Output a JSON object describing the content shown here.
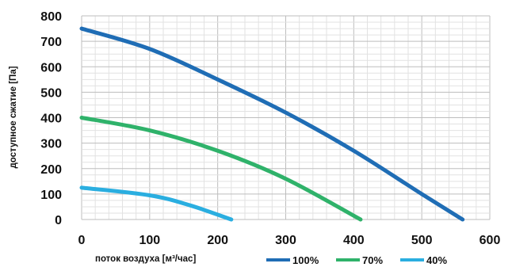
{
  "chart_data": {
    "type": "line",
    "xlabel": "поток воздуха [м³/час]",
    "ylabel": "доступное сжатие [Па]",
    "xlim": [
      0,
      600
    ],
    "ylim": [
      0,
      800
    ],
    "x_ticks": [
      "0",
      "100",
      "200",
      "300",
      "400",
      "500",
      "600"
    ],
    "y_ticks": [
      "0",
      "100",
      "200",
      "300",
      "400",
      "500",
      "600",
      "700",
      "800"
    ],
    "grid": true,
    "legend_position": "bottom-right",
    "series": [
      {
        "name": "100%",
        "color": "#1f6db5",
        "x": [
          0,
          100,
          200,
          300,
          400,
          500,
          560
        ],
        "y": [
          750,
          670,
          550,
          420,
          270,
          100,
          0
        ]
      },
      {
        "name": "70%",
        "color": "#2fb26a",
        "x": [
          0,
          100,
          200,
          300,
          410
        ],
        "y": [
          400,
          350,
          270,
          160,
          0
        ]
      },
      {
        "name": "40%",
        "color": "#2aaee0",
        "x": [
          0,
          100,
          160,
          220
        ],
        "y": [
          125,
          95,
          55,
          0
        ]
      }
    ]
  }
}
